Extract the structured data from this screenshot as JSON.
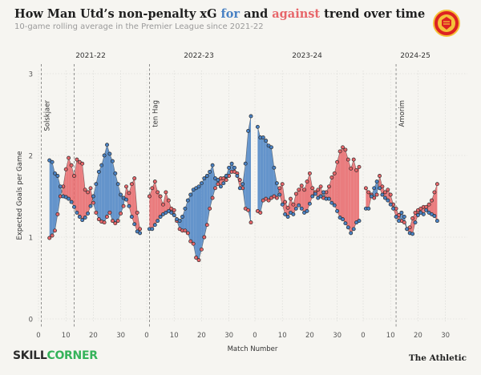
{
  "header": {
    "title_pre": "How Man Utd’s non-penalty xG ",
    "title_for": "for",
    "title_mid": " and ",
    "title_against": "against",
    "title_post": " trend over time",
    "subtitle": "10-game rolling average in the Premier League since 2021-22"
  },
  "crest": {
    "icon": "manchester-united-crest"
  },
  "footer": {
    "brand_left_a": "SKILL",
    "brand_left_b": "CORNER",
    "brand_right": "The Athletic"
  },
  "colors": {
    "for": "#4a82c4",
    "against": "#e7666a",
    "background": "#f6f5f1"
  },
  "chart_data": {
    "type": "line",
    "xlabel": "Match Number",
    "ylabel": "Expected Goals per Game",
    "ylim": [
      0,
      3
    ],
    "yticks": [
      "0",
      "1",
      "2",
      "3"
    ],
    "xticks": [
      "0",
      "10",
      "20",
      "30"
    ],
    "grid": true,
    "panels": [
      {
        "season": "2021-22",
        "x_range": [
          0,
          38
        ],
        "manager_changes": [
          {
            "name": "Solskjaer",
            "match": 1
          },
          {
            "name": "",
            "match": 13
          }
        ],
        "series": [
          {
            "name": "for",
            "x": [
              4,
              5,
              6,
              7,
              8,
              9,
              10,
              11,
              12,
              13,
              14,
              15,
              16,
              17,
              18,
              19,
              20,
              21,
              22,
              23,
              24,
              25,
              26,
              27,
              28,
              29,
              30,
              31,
              32,
              33,
              34,
              35,
              36,
              37
            ],
            "y": [
              1.94,
              1.92,
              1.78,
              1.75,
              1.62,
              1.5,
              1.49,
              1.47,
              1.43,
              1.37,
              1.3,
              1.25,
              1.21,
              1.24,
              1.29,
              1.38,
              1.5,
              1.65,
              1.8,
              1.88,
              2.0,
              2.13,
              2.02,
              1.93,
              1.78,
              1.65,
              1.52,
              1.48,
              1.46,
              1.38,
              1.25,
              1.16,
              1.07,
              1.05
            ]
          },
          {
            "name": "against",
            "x": [
              4,
              5,
              6,
              7,
              8,
              9,
              10,
              11,
              12,
              13,
              14,
              15,
              16,
              17,
              18,
              19,
              20,
              21,
              22,
              23,
              24,
              25,
              26,
              27,
              28,
              29,
              30,
              31,
              32,
              33,
              34,
              35,
              36,
              37
            ],
            "y": [
              0.99,
              1.02,
              1.08,
              1.28,
              1.5,
              1.62,
              1.83,
              1.97,
              1.88,
              1.75,
              1.95,
              1.92,
              1.9,
              1.58,
              1.55,
              1.6,
              1.42,
              1.3,
              1.22,
              1.19,
              1.18,
              1.25,
              1.3,
              1.2,
              1.17,
              1.2,
              1.29,
              1.38,
              1.62,
              1.54,
              1.65,
              1.72,
              1.3,
              1.1
            ]
          }
        ]
      },
      {
        "season": "2022-23",
        "x_range": [
          0,
          38
        ],
        "manager_changes": [
          {
            "name": "ten Hag",
            "match": 1
          }
        ],
        "series": [
          {
            "name": "for",
            "x": [
              1,
              2,
              3,
              4,
              5,
              6,
              7,
              8,
              9,
              10,
              11,
              12,
              13,
              14,
              15,
              16,
              17,
              18,
              19,
              20,
              21,
              22,
              23,
              24,
              25,
              26,
              27,
              28,
              29,
              30,
              31,
              32,
              33,
              34,
              35,
              36,
              37,
              38
            ],
            "y": [
              1.1,
              1.1,
              1.15,
              1.2,
              1.25,
              1.28,
              1.3,
              1.32,
              1.3,
              1.27,
              1.22,
              1.2,
              1.25,
              1.35,
              1.45,
              1.52,
              1.58,
              1.6,
              1.62,
              1.66,
              1.72,
              1.75,
              1.8,
              1.88,
              1.72,
              1.7,
              1.62,
              1.66,
              1.75,
              1.85,
              1.9,
              1.85,
              1.75,
              1.6,
              1.65,
              1.9,
              2.3,
              2.48
            ]
          },
          {
            "name": "against",
            "x": [
              1,
              2,
              3,
              4,
              5,
              6,
              7,
              8,
              9,
              10,
              11,
              12,
              13,
              14,
              15,
              16,
              17,
              18,
              19,
              20,
              21,
              22,
              23,
              24,
              25,
              26,
              27,
              28,
              29,
              30,
              31,
              32,
              33,
              34,
              35,
              36,
              37,
              38
            ],
            "y": [
              1.5,
              1.6,
              1.68,
              1.55,
              1.5,
              1.4,
              1.55,
              1.45,
              1.35,
              1.33,
              1.2,
              1.1,
              1.08,
              1.08,
              1.05,
              0.95,
              0.92,
              0.75,
              0.72,
              0.85,
              1.0,
              1.15,
              1.35,
              1.48,
              1.6,
              1.65,
              1.72,
              1.72,
              1.7,
              1.75,
              1.8,
              1.8,
              1.78,
              1.7,
              1.6,
              1.35,
              1.33,
              1.18
            ]
          }
        ]
      },
      {
        "season": "2023-24",
        "x_range": [
          0,
          38
        ],
        "manager_changes": [],
        "series": [
          {
            "name": "for",
            "x": [
              1,
              2,
              3,
              4,
              5,
              6,
              7,
              8,
              9,
              10,
              11,
              12,
              13,
              14,
              15,
              16,
              17,
              18,
              19,
              20,
              21,
              22,
              23,
              24,
              25,
              26,
              27,
              28,
              29,
              30,
              31,
              32,
              33,
              34,
              35,
              36,
              37,
              38
            ],
            "y": [
              2.35,
              2.22,
              2.22,
              2.18,
              2.12,
              2.1,
              1.85,
              1.66,
              1.52,
              1.4,
              1.28,
              1.25,
              1.3,
              1.28,
              1.35,
              1.39,
              1.35,
              1.3,
              1.32,
              1.41,
              1.5,
              1.53,
              1.48,
              1.5,
              1.55,
              1.47,
              1.47,
              1.42,
              1.39,
              1.32,
              1.24,
              1.22,
              1.17,
              1.12,
              1.05,
              1.1,
              1.18,
              1.2
            ]
          },
          {
            "name": "against",
            "x": [
              1,
              2,
              3,
              4,
              5,
              6,
              7,
              8,
              9,
              10,
              11,
              12,
              13,
              14,
              15,
              16,
              17,
              18,
              19,
              20,
              21,
              22,
              23,
              24,
              25,
              26,
              27,
              28,
              29,
              30,
              31,
              32,
              33,
              34,
              35,
              36,
              37,
              38
            ],
            "y": [
              1.32,
              1.3,
              1.45,
              1.47,
              1.45,
              1.48,
              1.5,
              1.48,
              1.6,
              1.65,
              1.43,
              1.36,
              1.47,
              1.4,
              1.53,
              1.58,
              1.63,
              1.58,
              1.68,
              1.78,
              1.6,
              1.55,
              1.58,
              1.62,
              1.48,
              1.55,
              1.62,
              1.73,
              1.78,
              1.92,
              2.05,
              2.1,
              2.07,
              1.95,
              1.84,
              1.95,
              1.82,
              1.86
            ]
          }
        ]
      },
      {
        "season": "2024-25",
        "x_range": [
          0,
          38
        ],
        "manager_changes": [
          {
            "name": "Amorim",
            "match": 12
          }
        ],
        "series": [
          {
            "name": "for",
            "x": [
              1,
              2,
              3,
              4,
              5,
              6,
              7,
              8,
              9,
              10,
              11,
              12,
              13,
              14,
              15,
              16,
              17,
              18,
              19,
              20,
              21,
              22,
              23,
              24,
              25,
              26,
              27
            ],
            "y": [
              1.35,
              1.35,
              1.5,
              1.6,
              1.68,
              1.6,
              1.52,
              1.48,
              1.45,
              1.4,
              1.35,
              1.25,
              1.2,
              1.3,
              1.25,
              1.1,
              1.05,
              1.04,
              1.18,
              1.27,
              1.3,
              1.28,
              1.33,
              1.3,
              1.28,
              1.26,
              1.2
            ]
          },
          {
            "name": "against",
            "x": [
              1,
              2,
              3,
              4,
              5,
              6,
              7,
              8,
              9,
              10,
              11,
              12,
              13,
              14,
              15,
              16,
              17,
              18,
              19,
              20,
              21,
              22,
              23,
              24,
              25,
              26,
              27
            ],
            "y": [
              1.6,
              1.55,
              1.52,
              1.48,
              1.52,
              1.75,
              1.62,
              1.55,
              1.58,
              1.52,
              1.4,
              1.35,
              1.27,
              1.2,
              1.18,
              1.1,
              1.12,
              1.23,
              1.3,
              1.33,
              1.35,
              1.37,
              1.37,
              1.4,
              1.45,
              1.55,
              1.65
            ]
          }
        ]
      }
    ]
  }
}
